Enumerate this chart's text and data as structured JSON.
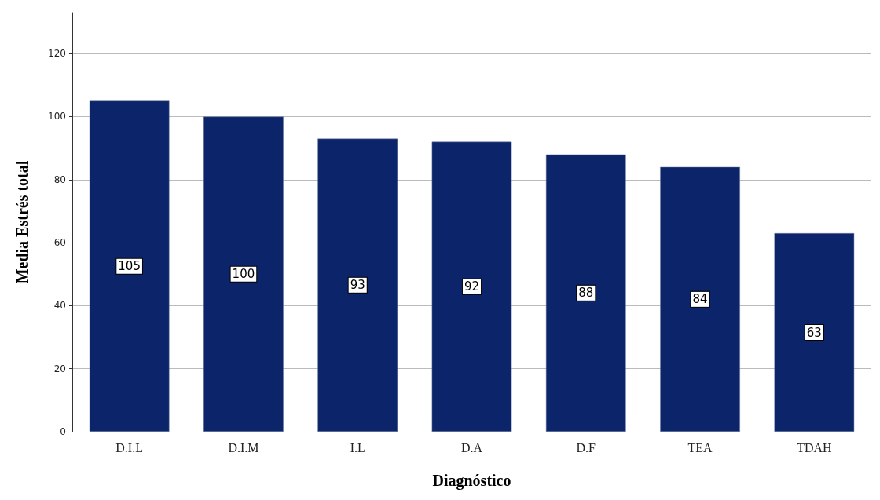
{
  "chart_data": {
    "type": "bar",
    "xlabel": "Diagnóstico",
    "ylabel": "Media Estrés total",
    "categories": [
      "D.I.L",
      "D.I.M",
      "I.L",
      "D.A",
      "D.F",
      "TEA",
      "TDAH"
    ],
    "values": [
      105,
      100,
      93,
      92,
      88,
      84,
      63
    ],
    "color": "#0c2469",
    "ylim": [
      0,
      133
    ],
    "yticks": [
      0,
      20,
      40,
      60,
      80,
      100,
      120
    ],
    "grid": "y",
    "data_labels": true
  }
}
